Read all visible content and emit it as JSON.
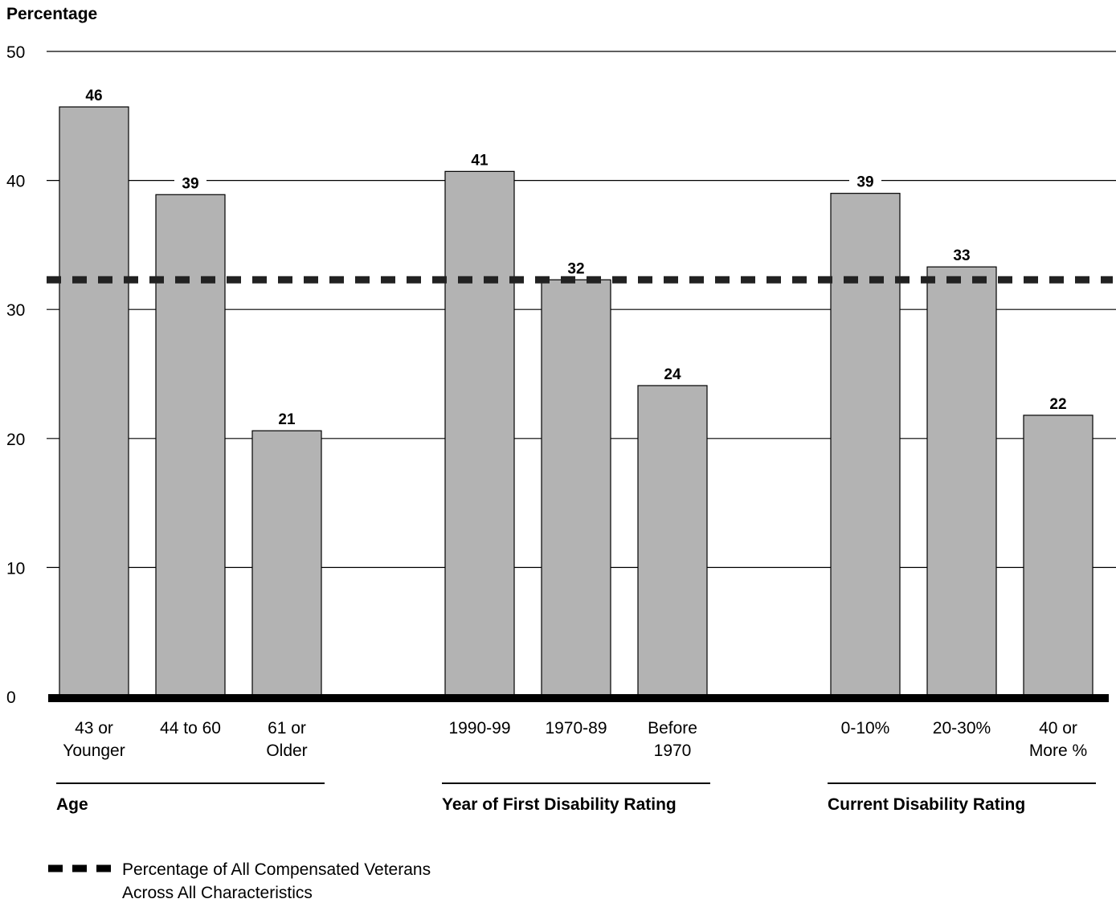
{
  "chart_data": {
    "type": "bar",
    "ylabel": "Percentage",
    "ylim": [
      0,
      50
    ],
    "yticks": [
      0,
      10,
      20,
      30,
      40,
      50
    ],
    "grid": true,
    "reference_line": {
      "value": 32.3,
      "style": "dashed",
      "label_line1": "Percentage of All Compensated Veterans",
      "label_line2": "Across All Characteristics"
    },
    "groups": [
      {
        "label": "Age",
        "categories": [
          {
            "line1": "43 or",
            "line2": "Younger",
            "value": 46,
            "height": 45.7
          },
          {
            "line1": "44 to 60",
            "line2": "",
            "value": 39,
            "height": 38.9
          },
          {
            "line1": "61 or",
            "line2": "Older",
            "value": 21,
            "height": 20.6
          }
        ]
      },
      {
        "label": "Year of First Disability Rating",
        "categories": [
          {
            "line1": "1990-99",
            "line2": "",
            "value": 41,
            "height": 40.7
          },
          {
            "line1": "1970-89",
            "line2": "",
            "value": 32,
            "height": 32.3
          },
          {
            "line1": "Before",
            "line2": "1970",
            "value": 24,
            "height": 24.1
          }
        ]
      },
      {
        "label": "Current Disability Rating",
        "categories": [
          {
            "line1": "0-10%",
            "line2": "",
            "value": 39,
            "height": 39.0
          },
          {
            "line1": "20-30%",
            "line2": "",
            "value": 33,
            "height": 33.3
          },
          {
            "line1": "40 or",
            "line2": "More %",
            "value": 22,
            "height": 21.8
          }
        ]
      }
    ]
  }
}
